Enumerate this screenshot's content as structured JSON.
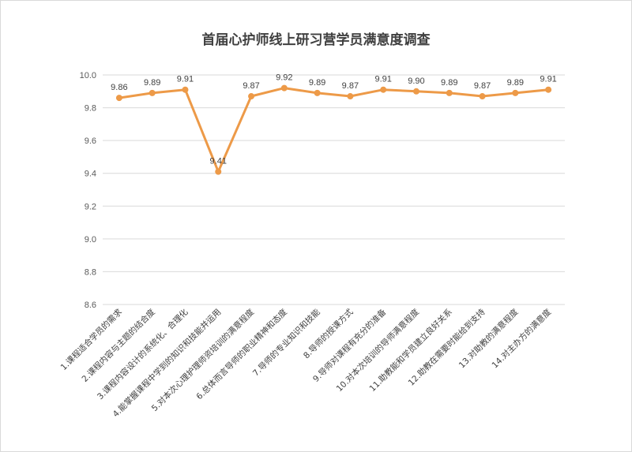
{
  "chart_data": {
    "type": "line",
    "title": "首届心护师线上研习营学员满意度调查",
    "xlabel": "",
    "ylabel": "",
    "ylim": [
      8.6,
      10.0
    ],
    "yticks": [
      "10.0",
      "9.8",
      "9.6",
      "9.4",
      "9.2",
      "9.0",
      "8.8",
      "8.6"
    ],
    "grid": true,
    "legend": "none",
    "categories": [
      "1.课程适合学员的需求",
      "2.课程内容与主题的结合度",
      "3.课程内容设计的系统化、合理化",
      "4.能掌握课程中学到的知识和技能并运用",
      "5.对本次心理护理师资培训的满意程度",
      "6.总体而言导师的职业精神和态度",
      "7.导师的专业知识和技能",
      "8.导师的授课方式",
      "9.导师对课程有充分的准备",
      "10.对本次培训的导师满意程度",
      "11.助教能和学员建立良好关系",
      "12.助教在需要时能给到支持",
      "13.对助教的满意程度",
      "14.对主办方的满意度"
    ],
    "values": [
      9.86,
      9.89,
      9.91,
      9.41,
      9.87,
      9.92,
      9.89,
      9.87,
      9.91,
      9.9,
      9.89,
      9.87,
      9.89,
      9.91
    ],
    "data_labels": [
      "9.86",
      "9.89",
      "9.91",
      "9.41",
      "9.87",
      "9.92",
      "9.89",
      "9.87",
      "9.91",
      "9.90",
      "9.89",
      "9.87",
      "9.89",
      "9.91"
    ],
    "colors": {
      "line": "#ED9A48",
      "grid": "#D9D9D9",
      "text": "#404040"
    }
  }
}
